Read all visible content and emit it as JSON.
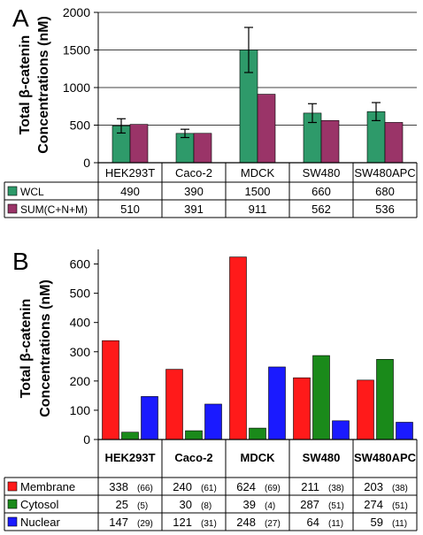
{
  "chart_data": [
    {
      "type": "bar",
      "panel_label": "A",
      "ylabel": [
        "Total β-catenin",
        "Concentrations (nM)"
      ],
      "ylim": [
        0,
        2000
      ],
      "yticks": [
        "0",
        "500",
        "1000",
        "1500",
        "2000"
      ],
      "ytick_values": [
        0,
        500,
        1000,
        1500,
        2000
      ],
      "grid": true,
      "categories": [
        "HEK293T",
        "Caco-2",
        "MDCK",
        "SW480",
        "SW480APC"
      ],
      "series": [
        {
          "name": "WCL",
          "color": "#2e9a6a",
          "values": [
            490,
            390,
            1500,
            660,
            680
          ],
          "error": [
            95,
            55,
            300,
            125,
            120
          ],
          "table_values": [
            "490",
            "390",
            "1500",
            "660",
            "680"
          ]
        },
        {
          "name": "SUM(C+N+M)",
          "color": "#9a3468",
          "values": [
            510,
            391,
            911,
            562,
            536
          ],
          "table_values": [
            "510",
            "391",
            "911",
            "562",
            "536"
          ]
        }
      ]
    },
    {
      "type": "bar",
      "panel_label": "B",
      "ylabel": [
        "Total β-catenin",
        "Concentrations (nM)"
      ],
      "ylim": [
        0,
        650
      ],
      "yticks": [
        "0",
        "100",
        "200",
        "300",
        "400",
        "500",
        "600"
      ],
      "ytick_values": [
        0,
        100,
        200,
        300,
        400,
        500,
        600
      ],
      "grid": false,
      "categories": [
        "HEK293T",
        "Caco-2",
        "MDCK",
        "SW480",
        "SW480APC"
      ],
      "series": [
        {
          "name": "Membrane",
          "color": "#ff1a1a",
          "values": [
            338,
            240,
            624,
            211,
            203
          ],
          "table_values": [
            "338",
            "240",
            "624",
            "211",
            "203"
          ],
          "table_pct": [
            "(66)",
            "(61)",
            "(69)",
            "(38)",
            "(38)"
          ]
        },
        {
          "name": "Cytosol",
          "color": "#1a8a1a",
          "values": [
            25,
            30,
            39,
            287,
            274
          ],
          "table_values": [
            "25",
            "30",
            "39",
            "287",
            "274"
          ],
          "table_pct": [
            "(5)",
            "(8)",
            "(4)",
            "(51)",
            "(51)"
          ]
        },
        {
          "name": "Nuclear",
          "color": "#1a1aff",
          "values": [
            147,
            121,
            248,
            64,
            59
          ],
          "table_values": [
            "147",
            "121",
            "248",
            "64",
            "59"
          ],
          "table_pct": [
            "(29)",
            "(31)",
            "(27)",
            "(11)",
            "(11)"
          ]
        }
      ]
    }
  ]
}
